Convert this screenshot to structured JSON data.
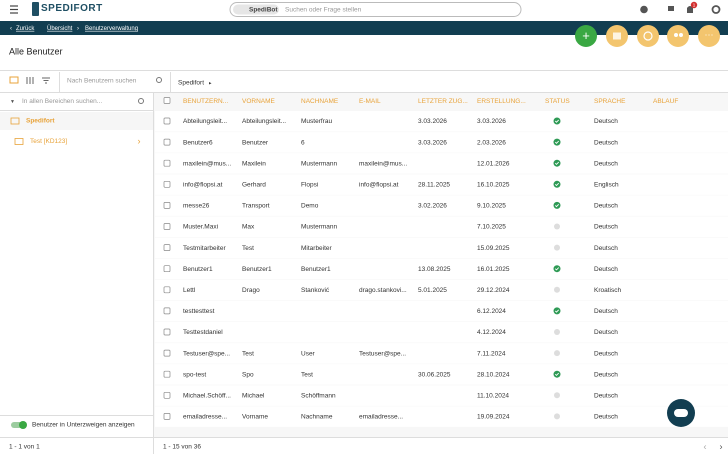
{
  "header": {
    "logo": "SPEDIFORT",
    "search_chip": "SpediBot",
    "search_placeholder": "Suchen oder Frage stellen",
    "notification_count": 1
  },
  "breadcrumb": {
    "back": "Zurück",
    "items": [
      "Übersicht",
      "Benutzerverwaltung"
    ]
  },
  "page_title": "Alle Benutzer",
  "toolbar": {
    "search_placeholder": "Nach Benutzern suchen",
    "path": "Spedifort"
  },
  "sidebar": {
    "search_placeholder": "In allen Bereichen suchen...",
    "tree": [
      {
        "label": "Spedifort",
        "selected": true
      },
      {
        "label": "Test [KD123]",
        "selected": false
      }
    ],
    "toggle_label": "Benutzer in Unterzweigen anzeigen",
    "toggle_on": true,
    "footer": "1 - 1 von 1"
  },
  "table": {
    "columns": [
      "BENUTZERN...",
      "VORNAME",
      "NACHNAME",
      "E-MAIL",
      "LETZTER ZUG...",
      "ERSTELLUNG...",
      "STATUS",
      "SPRACHE",
      "ABLAUF"
    ],
    "rows": [
      {
        "cells": [
          "Abteilungsleit...",
          "Abteilungsleit...",
          "Musterfrau",
          null,
          "3.03.2026",
          "3.03.2026",
          "Deutsch",
          null
        ],
        "active": true
      },
      {
        "cells": [
          "Benutzer6",
          "Benutzer",
          "6",
          null,
          "3.03.2026",
          "2.03.2026",
          "Deutsch",
          null
        ],
        "active": true
      },
      {
        "cells": [
          "maxilein@mus...",
          "Maxilein",
          "Mustermann",
          "maxilein@mus...",
          null,
          "12.01.2026",
          "Deutsch",
          null
        ],
        "active": true
      },
      {
        "cells": [
          "info@flopsi.at",
          "Gerhard",
          "Flopsi",
          "info@flopsi.at",
          "28.11.2025",
          "16.10.2025",
          "Englisch",
          null
        ],
        "active": true
      },
      {
        "cells": [
          "messe26",
          "Transport",
          "Demo",
          null,
          "3.02.2026",
          "9.10.2025",
          "Deutsch",
          null
        ],
        "active": true
      },
      {
        "cells": [
          "Muster.Maxi",
          "Max",
          "Mustermann",
          null,
          null,
          "7.10.2025",
          "Deutsch",
          null
        ],
        "active": false
      },
      {
        "cells": [
          "Testmitarbeiter",
          "Test",
          "Mitarbeiter",
          null,
          null,
          "15.09.2025",
          "Deutsch",
          null
        ],
        "active": false
      },
      {
        "cells": [
          "Benutzer1",
          "Benutzer1",
          "Benutzer1",
          null,
          "13.08.2025",
          "16.01.2025",
          "Deutsch",
          null
        ],
        "active": true
      },
      {
        "cells": [
          "Lettl",
          "Drago",
          "Stanković",
          "drago.stankovi...",
          "5.01.2025",
          "29.12.2024",
          "Kroatisch",
          null
        ],
        "active": false
      },
      {
        "cells": [
          "testtesttest",
          null,
          null,
          null,
          null,
          "6.12.2024",
          "Deutsch",
          null
        ],
        "active": true
      },
      {
        "cells": [
          "Testtestdaniel",
          null,
          null,
          null,
          null,
          "4.12.2024",
          "Deutsch",
          null
        ],
        "active": false
      },
      {
        "cells": [
          "Testuser@spe...",
          "Test",
          "User",
          "Testuser@spe...",
          null,
          "7.11.2024",
          "Deutsch",
          null
        ],
        "active": false
      },
      {
        "cells": [
          "spo-test",
          "Spo",
          "Test",
          null,
          "30.06.2025",
          "28.10.2024",
          "Deutsch",
          null
        ],
        "active": true
      },
      {
        "cells": [
          "Michael.Schöff...",
          "Michael",
          "Schöffmann",
          null,
          null,
          "11.10.2024",
          "Deutsch",
          null
        ],
        "active": false
      },
      {
        "cells": [
          "emailadresse...",
          "Vorname",
          "Nachname",
          "emailadresse...",
          null,
          "19.09.2024",
          "Deutsch",
          null
        ],
        "active": false
      }
    ]
  },
  "pagination": "1 - 15 von 36"
}
